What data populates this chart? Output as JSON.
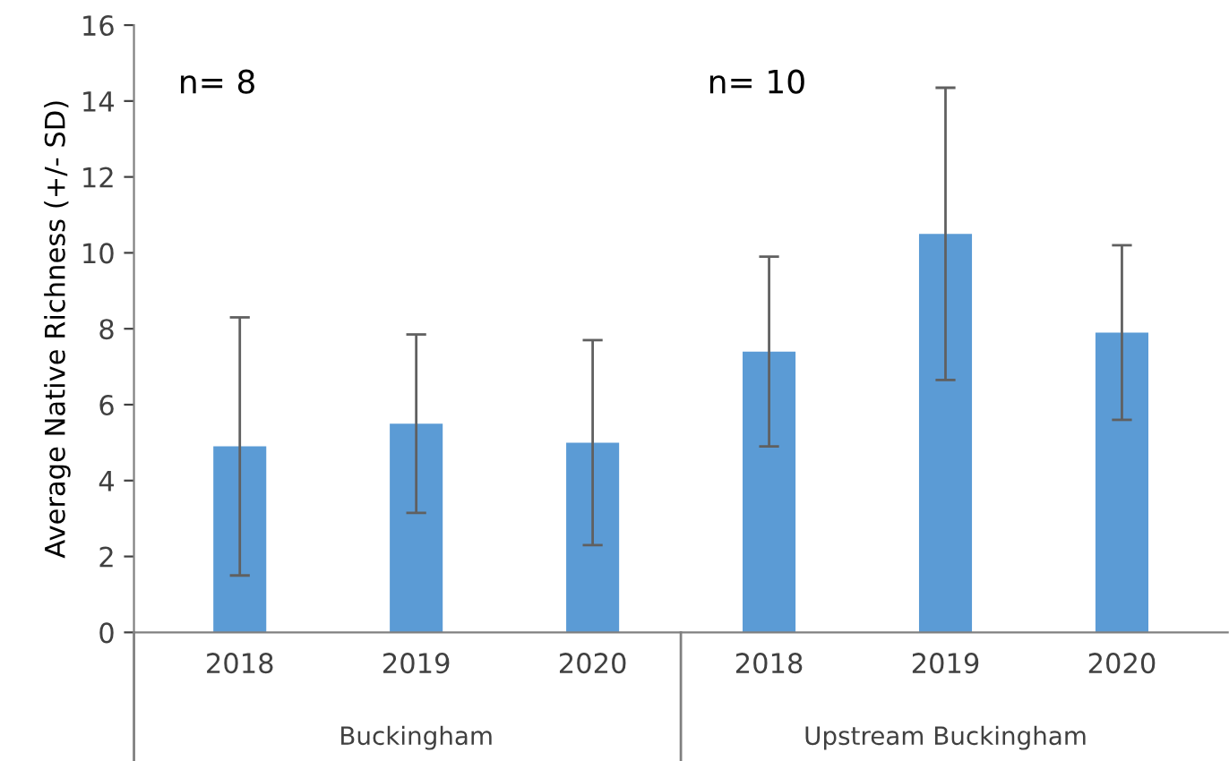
{
  "chart_data": {
    "type": "bar",
    "ylabel": "Average Native Richness (+/- SD)",
    "categories": [
      "2018",
      "2019",
      "2020",
      "2018",
      "2019",
      "2020"
    ],
    "values": [
      4.9,
      5.5,
      5.0,
      7.4,
      10.5,
      7.9
    ],
    "errors": [
      3.4,
      2.35,
      2.7,
      2.5,
      3.85,
      2.3
    ],
    "color": "#5b9bd5",
    "ylim": [
      0,
      16
    ],
    "yticks": [
      0,
      2,
      4,
      6,
      8,
      10,
      12,
      14,
      16
    ],
    "grid": false,
    "annotations": [
      "n= 8",
      "n= 10",
      "Buckingham",
      "Upstream Buckingham"
    ]
  }
}
